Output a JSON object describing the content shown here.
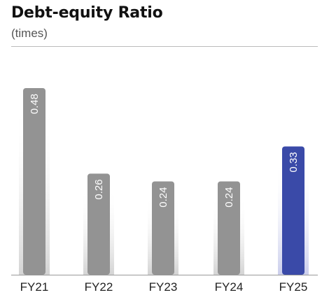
{
  "chart_data": {
    "type": "bar",
    "title": "Debt-equity Ratio",
    "subtitle": "(times)",
    "categories": [
      "FY21",
      "FY22",
      "FY23",
      "FY24",
      "FY25"
    ],
    "values": [
      0.48,
      0.26,
      0.24,
      0.24,
      0.33
    ],
    "data_labels": [
      "0.48",
      "0.26",
      "0.24",
      "0.24",
      "0.33"
    ],
    "ylim": [
      0,
      0.48
    ],
    "grid": false,
    "legend": "none",
    "colors": {
      "default_bar": "#939393",
      "highlight_bar": "#3a4aa8",
      "bar_glow": "#d9d9d9",
      "highlight_glow": "#c9cce8",
      "axis": "#999999"
    },
    "highlight_index": 4
  }
}
